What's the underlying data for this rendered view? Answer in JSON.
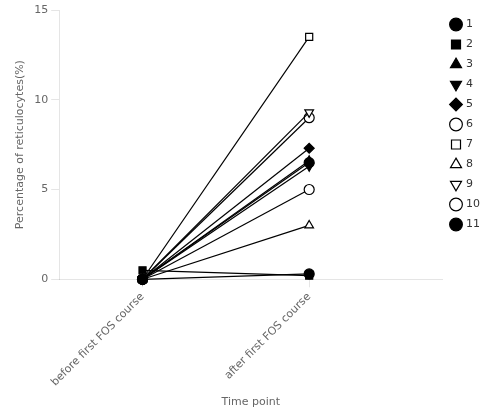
{
  "chart_data": {
    "type": "line",
    "xlabel": "Time point",
    "ylabel": "Percentage of reticulocytes(%)",
    "x": [
      0,
      1
    ],
    "xlim": [
      -0.5,
      1.8
    ],
    "xticks": [
      {
        "value": 0,
        "label": "before first FOS course"
      },
      {
        "value": 1,
        "label": "after first FOS course"
      }
    ],
    "ylim": [
      0,
      15
    ],
    "yticks": [
      0,
      5,
      10,
      15
    ],
    "grid": false,
    "legend": "right",
    "series": [
      {
        "name": "1",
        "color": "black",
        "marker": "circle",
        "values": [
          0.0,
          6.5
        ]
      },
      {
        "name": "2",
        "color": "black",
        "marker": "square",
        "values": [
          0.5,
          0.2
        ]
      },
      {
        "name": "3",
        "color": "black",
        "marker": "triangle",
        "values": [
          0.0,
          6.6
        ]
      },
      {
        "name": "4",
        "color": "black",
        "marker": "triangle_down",
        "values": [
          0.0,
          6.3
        ]
      },
      {
        "name": "5",
        "color": "black",
        "marker": "diamond",
        "values": [
          0.0,
          7.3
        ]
      },
      {
        "name": "6",
        "color": "black",
        "marker": "circle_open",
        "values": [
          0.0,
          5.0
        ]
      },
      {
        "name": "7",
        "color": "black",
        "marker": "square_open",
        "values": [
          0.0,
          13.5
        ]
      },
      {
        "name": "8",
        "color": "black",
        "marker": "triangle_open",
        "values": [
          0.0,
          3.0
        ]
      },
      {
        "name": "9",
        "color": "black",
        "marker": "triangle_down_open",
        "values": [
          0.0,
          9.3
        ]
      },
      {
        "name": "10",
        "color": "black",
        "marker": "circle_open",
        "values": [
          0.0,
          9.0
        ]
      },
      {
        "name": "11",
        "color": "black",
        "marker": "circle",
        "values": [
          0.0,
          0.3
        ]
      }
    ]
  }
}
